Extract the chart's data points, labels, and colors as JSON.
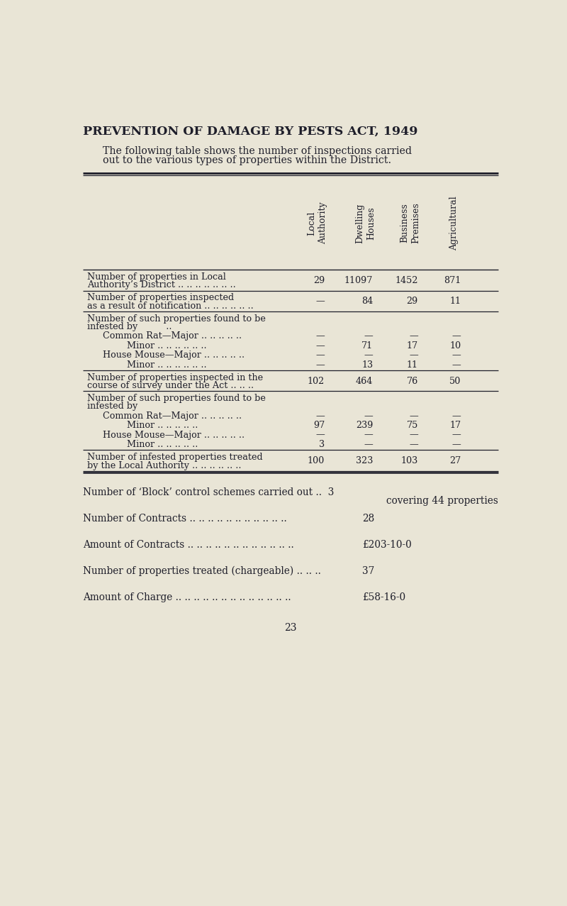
{
  "title": "PREVENTION OF DAMAGE BY PESTS ACT, 1949",
  "intro_line1": "The following table shows the number of inspections carried",
  "intro_line2": "out to the various types of properties within the District.",
  "col_headers": [
    "Local\nAuthority",
    "Dwelling\nHouses",
    "Business\nPremises",
    "Agricultural"
  ],
  "rows": [
    {
      "label1": "Number of properties in Local",
      "label2": "Authority’s District .. .. .. .. .. .. ..",
      "values": [
        "29",
        "11097",
        "1452",
        "871"
      ],
      "indent": 0,
      "bottom_border": true,
      "double_bottom": false
    },
    {
      "label1": "Number of properties inspected",
      "label2": "as a result of notification .. .. .. .. .. ..",
      "values": [
        "—",
        "84",
        "29",
        "11"
      ],
      "indent": 0,
      "bottom_border": true,
      "double_bottom": false
    },
    {
      "label1": "Number of such properties found to be",
      "label2": "infested by          ..",
      "values": [
        "",
        "",
        "",
        ""
      ],
      "indent": 0,
      "bottom_border": false,
      "double_bottom": false
    },
    {
      "label1": "Common Rat—Major .. .. .. .. ..",
      "label2": "",
      "values": [
        "—",
        "—",
        "—",
        "—"
      ],
      "indent": 1,
      "bottom_border": false,
      "double_bottom": false
    },
    {
      "label1": "Minor .. .. .. .. .. ..",
      "label2": "",
      "values": [
        "—",
        "71",
        "17",
        "10"
      ],
      "indent": 2,
      "bottom_border": false,
      "double_bottom": false
    },
    {
      "label1": "House Mouse—Major .. .. .. .. ..",
      "label2": "",
      "values": [
        "—",
        "—",
        "—",
        "—"
      ],
      "indent": 1,
      "bottom_border": false,
      "double_bottom": false
    },
    {
      "label1": "Minor .. .. .. .. .. ..",
      "label2": "",
      "values": [
        "—",
        "13",
        "11",
        "—"
      ],
      "indent": 2,
      "bottom_border": true,
      "double_bottom": false
    },
    {
      "label1": "Number of properties inspected in the",
      "label2": "course of survey under the Act .. .. ..",
      "values": [
        "102",
        "464",
        "76",
        "50"
      ],
      "indent": 0,
      "bottom_border": true,
      "double_bottom": false
    },
    {
      "label1": "Number of such properties found to be",
      "label2": "infested by",
      "values": [
        "",
        "",
        "",
        ""
      ],
      "indent": 0,
      "bottom_border": false,
      "double_bottom": false
    },
    {
      "label1": "Common Rat—Major .. .. .. .. ..",
      "label2": "",
      "values": [
        "—",
        "—",
        "—",
        "—"
      ],
      "indent": 1,
      "bottom_border": false,
      "double_bottom": false
    },
    {
      "label1": "Minor .. .. .. .. ..",
      "label2": "",
      "values": [
        "97",
        "239",
        "75",
        "17"
      ],
      "indent": 2,
      "bottom_border": false,
      "double_bottom": false
    },
    {
      "label1": "House Mouse—Major .. .. .. .. ..",
      "label2": "",
      "values": [
        "—",
        "—",
        "—",
        "—"
      ],
      "indent": 1,
      "bottom_border": false,
      "double_bottom": false
    },
    {
      "label1": "Minor .. .. .. .. ..",
      "label2": "",
      "values": [
        "3",
        "—",
        "—",
        "—"
      ],
      "indent": 2,
      "bottom_border": true,
      "double_bottom": false
    },
    {
      "label1": "Number of infested properties treated",
      "label2": "by the Local Authority .. .. .. .. .. ..",
      "values": [
        "100",
        "323",
        "103",
        "27"
      ],
      "indent": 0,
      "bottom_border": true,
      "double_bottom": true
    }
  ],
  "footer_lines": [
    {
      "text": "Number of ‘Block’ control schemes carried out ..  3",
      "value": "",
      "subtext": "covering 44 properties"
    },
    {
      "text": "Number of Contracts .. .. .. .. .. .. .. .. .. .. ..",
      "value": "28",
      "subtext": ""
    },
    {
      "text": "Amount of Contracts .. .. .. .. .. .. .. .. .. .. .. ..",
      "value": "£203-10-0",
      "subtext": ""
    },
    {
      "text": "Number of properties treated (chargeable) .. .. ..",
      "value": "37",
      "subtext": ""
    },
    {
      "text": "Amount of Charge .. .. .. .. .. .. .. .. .. .. .. .. ..",
      "value": "£58-16-0",
      "subtext": ""
    }
  ],
  "page_number": "23",
  "bg_color": "#e9e5d6",
  "text_color": "#1e1e2a",
  "line_color": "#1e1e2a"
}
